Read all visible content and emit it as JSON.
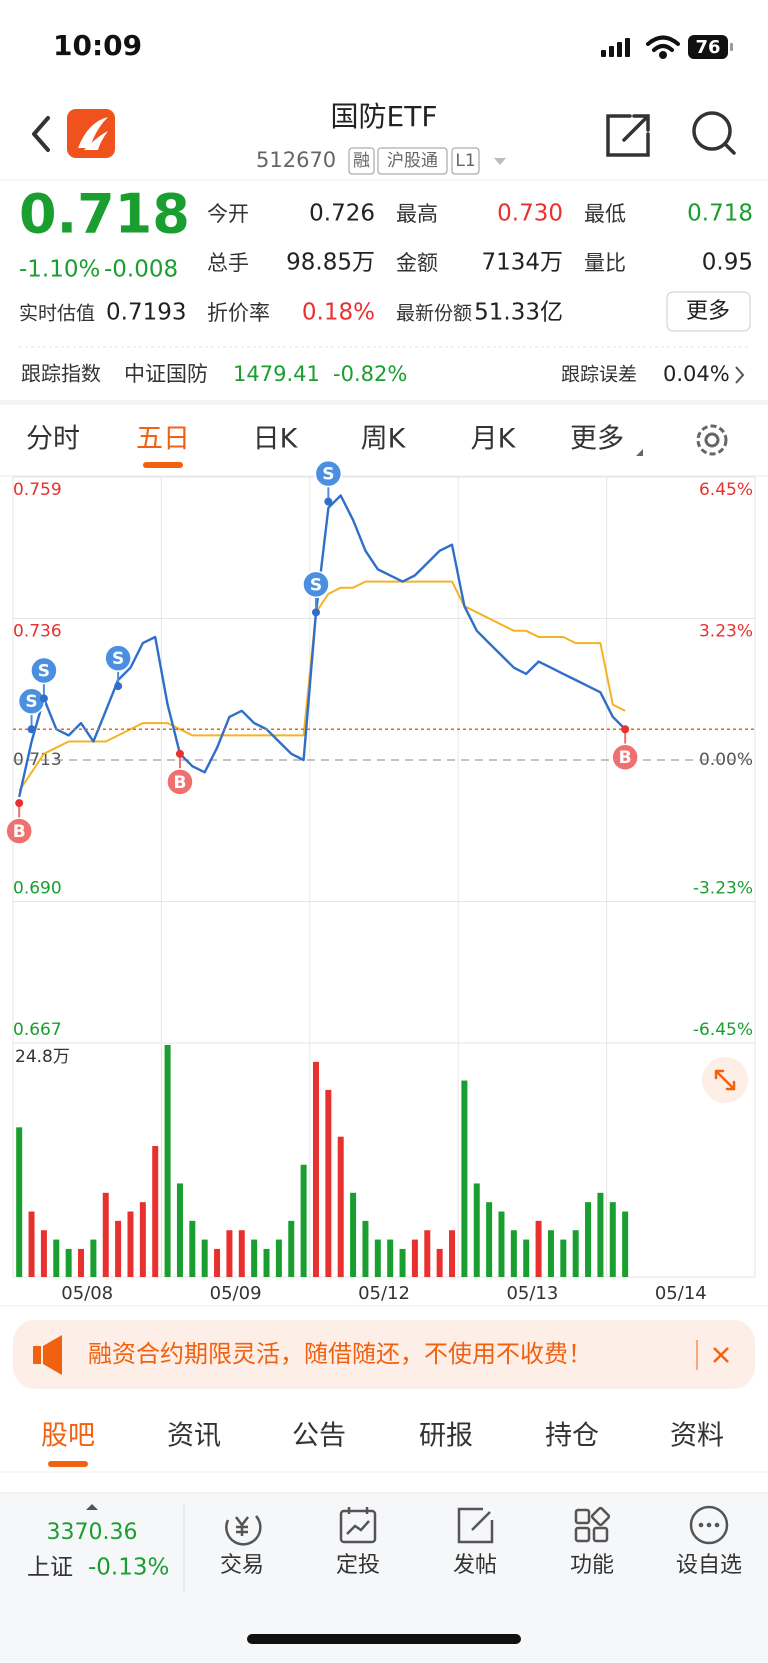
{
  "status_bar": {
    "time": "10:09",
    "battery": "76"
  },
  "header": {
    "title": "国防ETF",
    "code": "512670",
    "tags": [
      "融",
      "沪股通",
      "L1"
    ]
  },
  "quote": {
    "price": "0.718",
    "change_pct": "-1.10%",
    "change": "-0.008",
    "color": "#1a9e2f",
    "estimate_label": "实时估值",
    "estimate": "0.7193",
    "stats": [
      {
        "label": "今开",
        "value": "0.726",
        "color": "#222222"
      },
      {
        "label": "最高",
        "value": "0.730",
        "color": "#e8312f"
      },
      {
        "label": "最低",
        "value": "0.718",
        "color": "#1a9e2f"
      },
      {
        "label": "总手",
        "value": "98.85万",
        "color": "#222222"
      },
      {
        "label": "金额",
        "value": "7134万",
        "color": "#222222"
      },
      {
        "label": "量比",
        "value": "0.95",
        "color": "#222222"
      },
      {
        "label": "折价率",
        "value": "0.18%",
        "color": "#e8312f"
      },
      {
        "label": "最新份额",
        "value": "51.33亿",
        "color": "#222222"
      }
    ],
    "more": "更多"
  },
  "tracking": {
    "label": "跟踪指数",
    "index": "中证国防",
    "value": "1479.41",
    "change": "-0.82%",
    "color": "#1a9e2f",
    "error_label": "跟踪误差",
    "error": "0.04%"
  },
  "tabs": {
    "items": [
      "分时",
      "五日",
      "日K",
      "周K",
      "月K",
      "更多"
    ],
    "active": 1
  },
  "chart_data": {
    "type": "line",
    "price_color": "#2f6fc9",
    "avg_color": "#f5b324",
    "up_color": "#e8312f",
    "down_color": "#1a9e2f",
    "ylim": [
      0.667,
      0.759
    ],
    "yticks": [
      0.759,
      0.736,
      0.713,
      {
        "value": 0.69,
        "label": "0.690"
      },
      0.667
    ],
    "y2lim": [
      -6.45,
      6.45
    ],
    "y2ticks": [
      {
        "value": 6.45,
        "label": "6.45%"
      },
      {
        "value": 3.23,
        "label": "3.23%"
      },
      {
        "value": 0,
        "label": "0.00%"
      },
      {
        "value": -3.23,
        "label": "-3.23%"
      },
      {
        "value": -6.45,
        "label": "-6.45%"
      }
    ],
    "volume_max": {
      "value": 24.8,
      "label": "24.8万"
    },
    "days": [
      {
        "label": "05/08",
        "price": [
          0.707,
          0.716,
          0.723,
          0.718,
          0.717,
          0.719,
          0.716,
          0.721,
          0.726,
          0.728,
          0.732,
          0.733
        ],
        "avg": [
          0.708,
          0.711,
          0.714,
          0.715,
          0.716,
          0.716,
          0.716,
          0.716,
          0.717,
          0.718,
          0.719,
          0.719
        ],
        "volume": [
          16,
          7,
          5,
          4,
          3,
          3,
          4,
          9,
          6,
          7,
          8,
          14
        ]
      },
      {
        "label": "05/09",
        "price": [
          0.722,
          0.714,
          0.712,
          0.711,
          0.715,
          0.72,
          0.721,
          0.719,
          0.718,
          0.716,
          0.714,
          0.713
        ],
        "avg": [
          0.719,
          0.718,
          0.717,
          0.717,
          0.717,
          0.717,
          0.717,
          0.717,
          0.717,
          0.717,
          0.717,
          0.717
        ],
        "volume": [
          24.8,
          10,
          6,
          4,
          3,
          5,
          5,
          4,
          3,
          4,
          6,
          12
        ]
      },
      {
        "label": "05/12",
        "price": [
          0.737,
          0.754,
          0.756,
          0.752,
          0.747,
          0.744,
          0.743,
          0.742,
          0.743,
          0.745,
          0.747,
          0.748
        ],
        "avg": [
          0.737,
          0.74,
          0.741,
          0.741,
          0.742,
          0.742,
          0.742,
          0.742,
          0.742,
          0.742,
          0.742,
          0.742
        ],
        "volume": [
          23,
          20,
          15,
          9,
          6,
          4,
          4,
          3,
          4,
          5,
          3,
          5
        ]
      },
      {
        "label": "05/13",
        "price": [
          0.738,
          0.734,
          0.732,
          0.73,
          0.728,
          0.727,
          0.729,
          0.728,
          0.727,
          0.726,
          0.725,
          0.724
        ],
        "avg": [
          0.738,
          0.737,
          0.736,
          0.735,
          0.734,
          0.734,
          0.733,
          0.733,
          0.733,
          0.732,
          0.732,
          0.732
        ],
        "volume": [
          21,
          10,
          8,
          7,
          5,
          4,
          6,
          5,
          4,
          5,
          8,
          9
        ]
      },
      {
        "label": "05/14",
        "price": [
          0.72,
          0.718
        ],
        "avg": [
          0.722,
          0.721
        ],
        "volume": [
          8,
          7
        ]
      }
    ],
    "trades": [
      {
        "label": "B",
        "date": "05/08",
        "slot": 0,
        "price": 0.706
      },
      {
        "label": "S",
        "date": "05/08",
        "slot": 1,
        "price": 0.718
      },
      {
        "label": "S",
        "date": "05/08",
        "slot": 2,
        "price": 0.723
      },
      {
        "label": "S",
        "date": "05/08",
        "slot": 8,
        "price": 0.725
      },
      {
        "label": "B",
        "date": "05/09",
        "slot": 1,
        "price": 0.714
      },
      {
        "label": "S",
        "date": "05/12",
        "slot": 0,
        "price": 0.737
      },
      {
        "label": "S",
        "date": "05/12",
        "slot": 1,
        "price": 0.755
      },
      {
        "label": "B",
        "date": "05/14",
        "slot": 1,
        "price": 0.718
      }
    ]
  },
  "banner": {
    "text": "融资合约期限灵活，随借随还，不使用不收费！"
  },
  "news_tabs": {
    "items": [
      "股吧",
      "资讯",
      "公告",
      "研报",
      "持仓",
      "资料"
    ],
    "active": 0
  },
  "bottom_bar": {
    "index_value": "3370.36",
    "index_name": "上证",
    "index_change": "-0.13%",
    "color": "#1a9e2f",
    "actions": [
      "交易",
      "定投",
      "发帖",
      "功能",
      "设自选"
    ]
  }
}
